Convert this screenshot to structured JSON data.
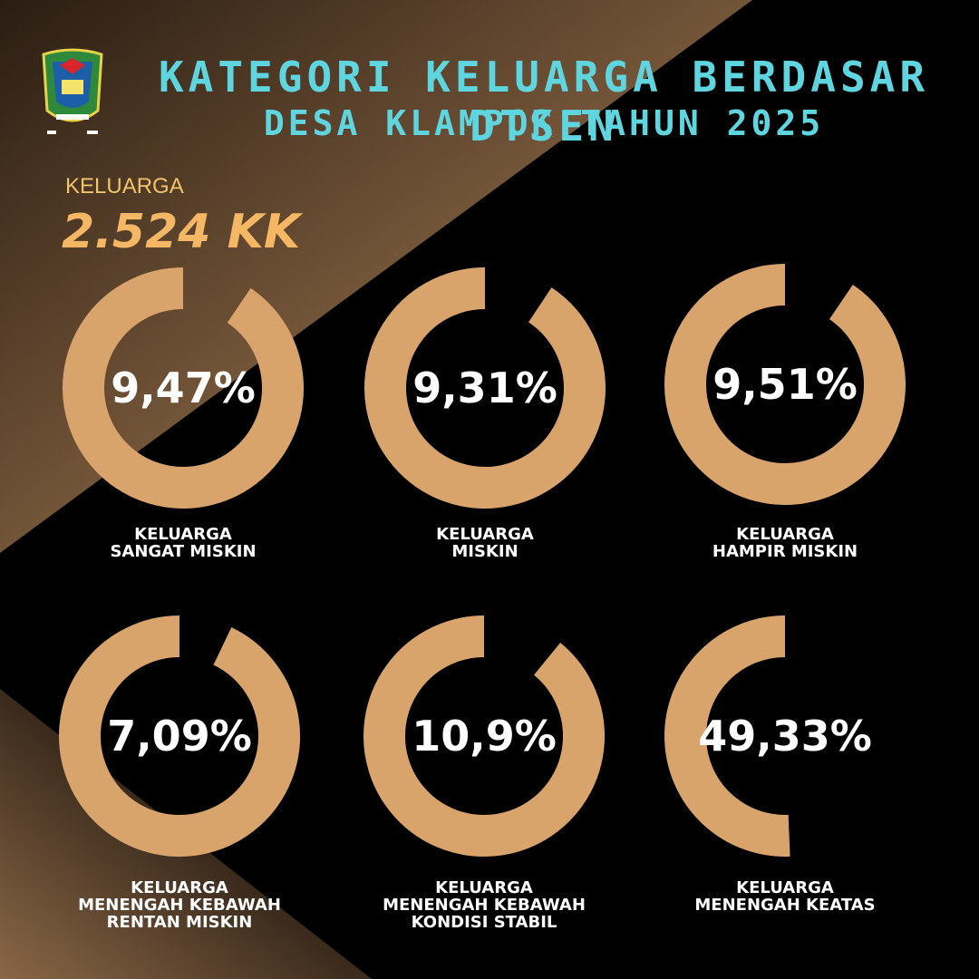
{
  "header": {
    "title_line1": "KATEGORI KELUARGA BERDASAR DTSEN",
    "title_line2": "DESA KLAMPOK TAHUN 2025"
  },
  "summary": {
    "label": "KELUARGA",
    "value": "2.524 KK"
  },
  "colors": {
    "accent": "#d9a36c",
    "title": "#5fd6df",
    "background": "#000000",
    "gradient": "#8b6542"
  },
  "icons": {
    "logo": "regency-emblem-icon"
  },
  "chart_data": {
    "type": "donut",
    "unit": "%",
    "categories": [
      "KELUARGA SANGAT MISKIN",
      "KELUARGA MISKIN",
      "KELUARGA HAMPIR MISKIN",
      "KELUARGA MENENGAH KEBAWAH RENTAN MISKIN",
      "KELUARGA MENENGAH KEBAWAH KONDISI STABIL",
      "KELUARGA MENENGAH KEATAS"
    ],
    "values": [
      9.47,
      9.31,
      9.51,
      7.09,
      10.9,
      49.33
    ],
    "value_labels": [
      "9,47%",
      "9,31%",
      "9,51%",
      "7,09%",
      "10,9%",
      "49,33%"
    ],
    "caption_lines": [
      [
        "KELUARGA",
        "SANGAT MISKIN"
      ],
      [
        "KELUARGA",
        "MISKIN"
      ],
      [
        "KELUARGA",
        "HAMPIR MISKIN"
      ],
      [
        "KELUARGA",
        "MENENGAH KEBAWAH",
        "RENTAN MISKIN"
      ],
      [
        "KELUARGA",
        "MENENGAH KEBAWAH",
        "KONDISI STABIL"
      ],
      [
        "KELUARGA",
        "MENENGAH KEATAS"
      ]
    ]
  }
}
